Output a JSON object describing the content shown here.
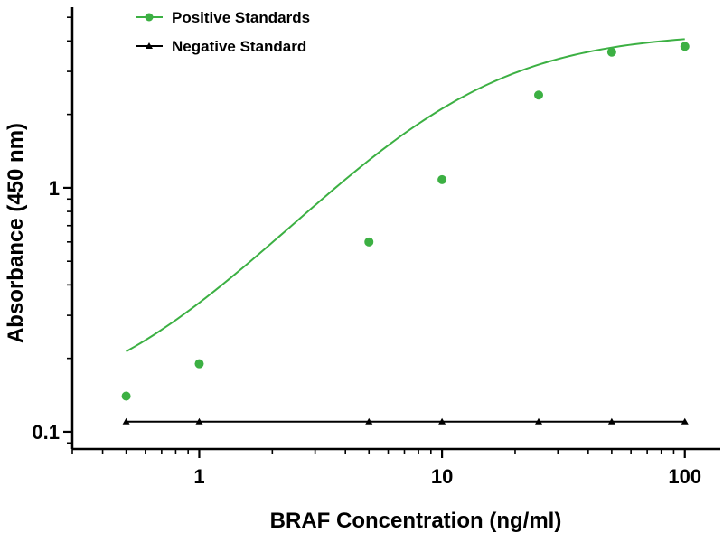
{
  "chart_data": {
    "type": "scatter",
    "title": "",
    "xlabel": "BRAF Concentration (ng/ml)",
    "ylabel": "Absorbance (450 nm)",
    "xscale": "log",
    "yscale": "log",
    "xlim": [
      0.3,
      140
    ],
    "ylim": [
      0.085,
      5.5
    ],
    "x_ticks": [
      {
        "value": 1,
        "label": "1"
      },
      {
        "value": 10,
        "label": "10"
      },
      {
        "value": 100,
        "label": "100"
      }
    ],
    "y_ticks": [
      {
        "value": 0.1,
        "label": "0.1"
      },
      {
        "value": 1,
        "label": "1"
      }
    ],
    "grid": false,
    "legend_position": "top-left",
    "series": [
      {
        "name": "Positive Standards",
        "color": "#3cb043",
        "marker": "circle",
        "fit": "sigmoid",
        "x": [
          0.5,
          1,
          5,
          10,
          25,
          50,
          100
        ],
        "y": [
          0.14,
          0.19,
          0.6,
          1.08,
          2.4,
          3.6,
          3.8
        ]
      },
      {
        "name": "Negative Standard",
        "color": "#000000",
        "marker": "triangle",
        "fit": "line",
        "x": [
          0.5,
          1,
          5,
          10,
          25,
          50,
          100
        ],
        "y": [
          0.11,
          0.11,
          0.11,
          0.11,
          0.11,
          0.11,
          0.11
        ]
      }
    ]
  }
}
